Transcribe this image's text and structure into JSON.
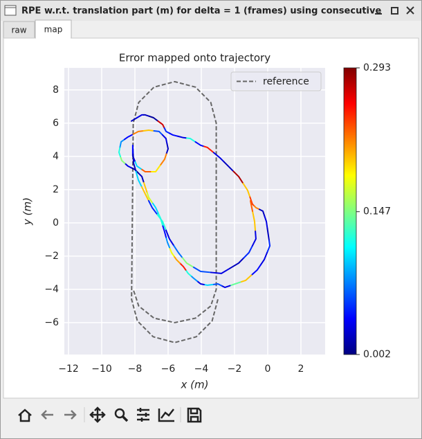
{
  "window": {
    "title": "RPE w.r.t. translation part (m) for delta = 1 (frames) using consecutive",
    "tabs": [
      "raw",
      "map"
    ]
  },
  "chart_data": {
    "type": "trajectory",
    "title": "Error mapped onto trajectory",
    "x_label": "x (m)",
    "y_label": "y (m)",
    "xlim": [
      -12.25,
      3.46
    ],
    "ylim": [
      -7.92,
      9.33
    ],
    "xticks": [
      {
        "value": -12,
        "label": "−12"
      },
      {
        "value": -10,
        "label": "−10"
      },
      {
        "value": -8,
        "label": "−8"
      },
      {
        "value": -6,
        "label": "−6"
      },
      {
        "value": -4,
        "label": "−4"
      },
      {
        "value": -2,
        "label": "−2"
      },
      0,
      2
    ],
    "yticks": [
      {
        "value": -6,
        "label": "−6"
      },
      {
        "value": -4,
        "label": "−4"
      },
      {
        "value": -2,
        "label": "−2"
      },
      0,
      2,
      4,
      6,
      8
    ],
    "grid": true,
    "background": "#eaeaf2",
    "legend": "upper right",
    "colormap": "jet",
    "colorbar": {
      "clim": [
        0.002,
        0.293
      ],
      "ticks": [
        0.002,
        0.147,
        0.293
      ]
    },
    "series": [
      {
        "name": "reference",
        "color": "#666666",
        "dashed": true,
        "x": [
          -3.0,
          -3.35,
          -4.3,
          -5.6,
          -6.9,
          -7.85,
          -8.2,
          -8.1,
          -7.77,
          -6.85,
          -5.6,
          -4.35,
          -3.43,
          -3.1,
          -3.1,
          -3.43,
          -4.35,
          -5.6,
          -6.85,
          -7.77,
          -8.1
        ],
        "y": [
          -4.6,
          -5.9,
          -6.85,
          -7.2,
          -6.85,
          -5.9,
          -4.6,
          6,
          7.25,
          8.17,
          8.5,
          8.17,
          7.25,
          6,
          -4,
          -5,
          -5.73,
          -6,
          -5.73,
          -5,
          -4
        ]
      }
    ],
    "trajectory": {
      "x": [
        -8.21,
        -7.58,
        -7.38,
        -6.88,
        -6.33,
        -6.12,
        -5.71,
        -5.08,
        -4.67,
        -4.04,
        -3.63,
        -2.88,
        -2.38,
        -1.75,
        -1.21,
        -0.92,
        -0.71,
        -0.29,
        -0.08,
        0.04,
        0.13,
        -0.21,
        -0.63,
        -1.33,
        -1.96,
        -2.58,
        -3,
        -3.63,
        -4.04,
        -4.46,
        -4.79,
        -5.08,
        -5.5,
        -5.79,
        -6.04,
        -6.21,
        -6.46,
        -6.75,
        -7.17,
        -7.38,
        -7.58,
        -8,
        -8.42,
        -8.79,
        -8.96,
        -8.83,
        -8.42,
        -7.79,
        -7.17,
        -6.54,
        -6.13,
        -6,
        -6.21,
        -6.75,
        -7.38,
        -7.88,
        -8.13,
        -8.13,
        -8.08,
        -7.79,
        -7.38,
        -6.96,
        -6.33,
        -5.92,
        -5.38,
        -4.88,
        -4.04,
        -2.79,
        -1.75,
        -1.13,
        -0.71,
        -0.79,
        -1.04
      ],
      "y": [
        6.13,
        6.5,
        6.5,
        6.33,
        5.92,
        5.5,
        5.29,
        5.13,
        5.08,
        4.67,
        4.54,
        3.92,
        3.42,
        2.79,
        1.96,
        1.13,
        0.92,
        0.71,
        0.08,
        -0.75,
        -1.38,
        -2.21,
        -2.83,
        -3.46,
        -3.67,
        -3.88,
        -3.67,
        -3.75,
        -3.67,
        -3.33,
        -3.04,
        -2.63,
        -2.21,
        -1.79,
        -1.17,
        -0.54,
        0.29,
        0.92,
        1.54,
        2.17,
        2.79,
        3.21,
        3.42,
        3.75,
        4.25,
        4.88,
        5.17,
        5.5,
        5.58,
        5.5,
        5.08,
        4.46,
        3.83,
        3.08,
        3.08,
        3.42,
        4.04,
        4.67,
        3.6,
        2.58,
        1.75,
        0.92,
        0.08,
        -0.96,
        -1.79,
        -2.42,
        -2.92,
        -3.04,
        -2.42,
        -1.79,
        -0.96,
        0.08,
        1.33
      ],
      "errors": [
        0.02,
        0.03,
        0.02,
        0.01,
        0.27,
        0.05,
        0.04,
        0.03,
        0.12,
        0.04,
        0.25,
        0.03,
        0.02,
        0.28,
        0.2,
        0.24,
        0.22,
        0.02,
        0.03,
        0.02,
        0.05,
        0.03,
        0.04,
        0.2,
        0.14,
        0.03,
        0.06,
        0.1,
        0.03,
        0.08,
        0.12,
        0.25,
        0.21,
        0.18,
        0.08,
        0.04,
        0.12,
        0.1,
        0.17,
        0.2,
        0.02,
        0.01,
        0.03,
        0.15,
        0.12,
        0.08,
        0.04,
        0.22,
        0.2,
        0.06,
        0.03,
        0.02,
        0.22,
        0.19,
        0.23,
        0.1,
        0.03,
        0.04,
        0.02,
        0.1,
        0.2,
        0.05,
        0.12,
        0.03,
        0.07,
        0.15,
        0.06,
        0.03,
        0.02,
        0.05,
        0.03,
        0.2,
        0.23
      ]
    }
  }
}
